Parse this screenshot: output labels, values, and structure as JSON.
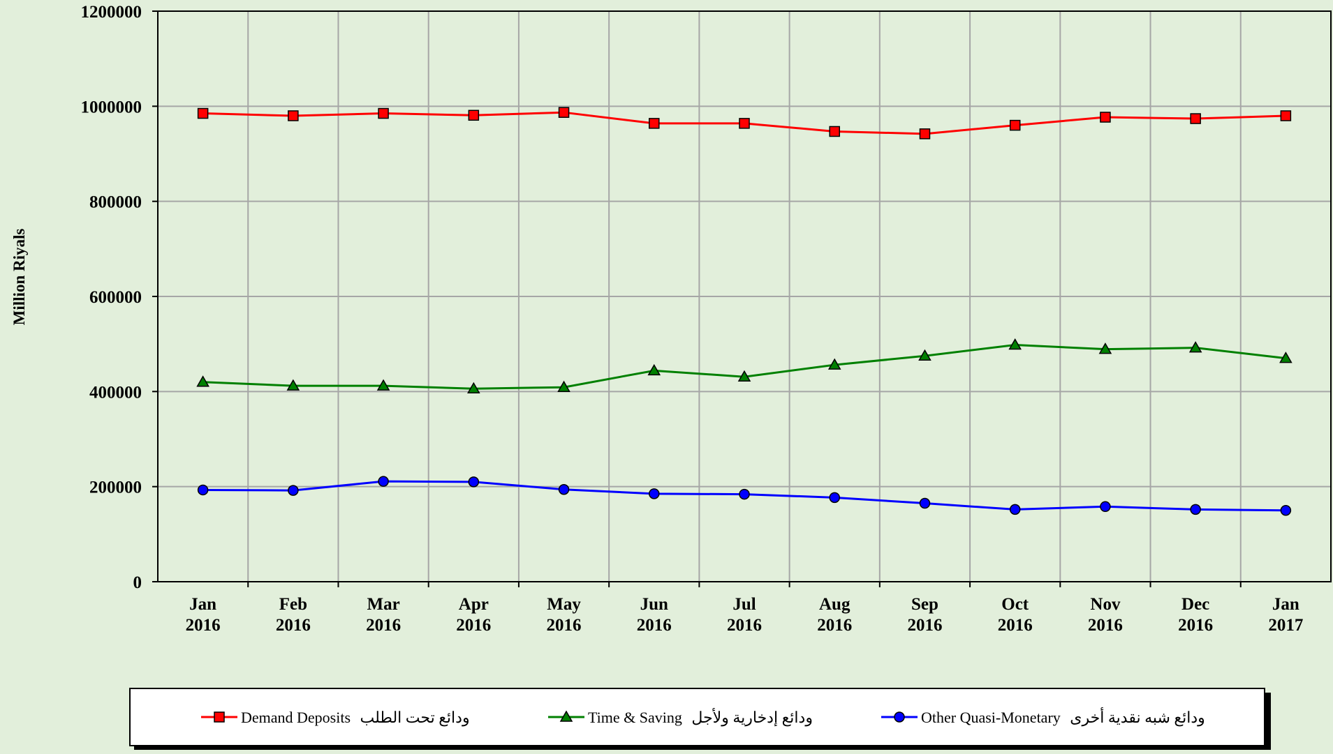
{
  "chart_data": {
    "type": "line",
    "title": "",
    "ylabel": "Million Riyals",
    "xlabel": "",
    "ylim": [
      0,
      1200000
    ],
    "yticks": [
      "0",
      "200000",
      "400000",
      "600000",
      "800000",
      "1000000",
      "1200000"
    ],
    "grid": true,
    "legend_position": "bottom",
    "categories": [
      [
        "Jan",
        "2016"
      ],
      [
        "Feb",
        "2016"
      ],
      [
        "Mar",
        "2016"
      ],
      [
        "Apr",
        "2016"
      ],
      [
        "May",
        "2016"
      ],
      [
        "Jun",
        "2016"
      ],
      [
        "Jul",
        "2016"
      ],
      [
        "Aug",
        "2016"
      ],
      [
        "Sep",
        "2016"
      ],
      [
        "Oct",
        "2016"
      ],
      [
        "Nov",
        "2016"
      ],
      [
        "Dec",
        "2016"
      ],
      [
        "Jan",
        "2017"
      ]
    ],
    "series": [
      {
        "name": "Demand Deposits",
        "name_ar": "ودائع تحت الطلب",
        "color": "#ff0000",
        "marker": "square",
        "values": [
          985000,
          980000,
          985000,
          981000,
          987000,
          964000,
          964000,
          947000,
          942000,
          960000,
          977000,
          974000,
          980000
        ]
      },
      {
        "name": "Time & Saving",
        "name_ar": "ودائع إدخارية ولأجل",
        "color": "#008000",
        "marker": "triangle",
        "values": [
          420000,
          412000,
          412000,
          406000,
          409000,
          444000,
          431000,
          456000,
          475000,
          498000,
          489000,
          492000,
          470000
        ]
      },
      {
        "name": "Other Quasi-Monetary",
        "name_ar": "ودائع شبه نقدية أخرى",
        "color": "#0000ff",
        "marker": "circle",
        "values": [
          193000,
          192000,
          211000,
          210000,
          194000,
          185000,
          184000,
          177000,
          165000,
          152000,
          158000,
          152000,
          150000
        ]
      }
    ]
  }
}
